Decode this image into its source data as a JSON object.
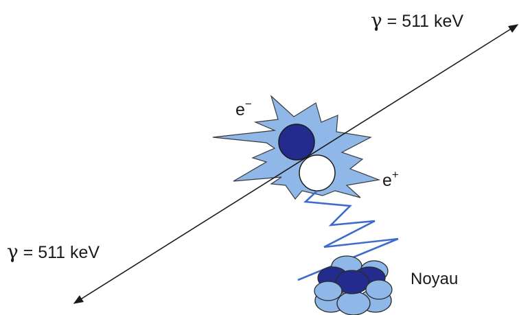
{
  "labels": {
    "gamma_top": {
      "symbol": "γ",
      "text": " = 511 keV"
    },
    "gamma_bottom": {
      "symbol": "γ",
      "text": " = 511 keV"
    },
    "electron": {
      "base": "e",
      "sup": "−"
    },
    "positron": {
      "base": "e",
      "sup": "+"
    },
    "nucleus": "Noyau"
  },
  "colors": {
    "burst": "#8fb7e8",
    "electron": "#232b8c",
    "positron": "#ffffff",
    "path": "#3f6ccc",
    "nucleus_dark": "#232b8c",
    "nucleus_light": "#8fb7e8",
    "line": "#1a1a1a"
  }
}
